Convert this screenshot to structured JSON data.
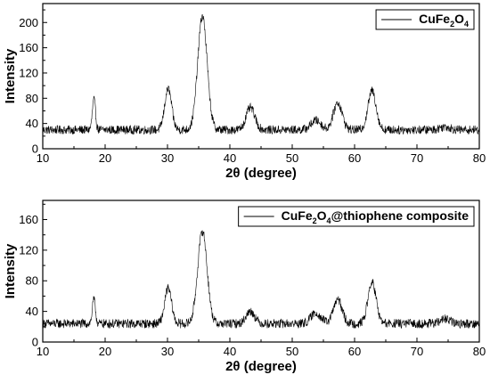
{
  "chart_data": [
    {
      "type": "line",
      "title": "",
      "xlabel": "2θ (degree)",
      "ylabel": "Intensity",
      "xlim": [
        10,
        80
      ],
      "ylim": [
        0,
        230
      ],
      "xticks": [
        "10",
        "20",
        "30",
        "40",
        "50",
        "60",
        "70",
        "80"
      ],
      "yticks": [
        "0",
        "40",
        "80",
        "120",
        "160",
        "200"
      ],
      "grid": false,
      "legend_position": "top-right",
      "series": [
        {
          "name": "CuFe2O4",
          "legend_parts": [
            "CuFe",
            "2",
            "O",
            "4"
          ],
          "baseline": 30,
          "noise": 7,
          "x": [
            10,
            18.2,
            30.1,
            35.6,
            43.3,
            53.8,
            57.3,
            62.8,
            74.5
          ],
          "y": [
            30,
            78,
            95,
            210,
            65,
            45,
            73,
            92,
            35
          ]
        }
      ]
    },
    {
      "type": "line",
      "title": "",
      "xlabel": "2θ (degree)",
      "ylabel": "Intensity",
      "xlim": [
        10,
        80
      ],
      "ylim": [
        0,
        185
      ],
      "xticks": [
        "10",
        "20",
        "30",
        "40",
        "50",
        "60",
        "70",
        "80"
      ],
      "yticks": [
        "0",
        "40",
        "80",
        "120",
        "160"
      ],
      "grid": false,
      "legend_position": "top-right",
      "series": [
        {
          "name": "CuFe2O4@thiophene composite",
          "legend_parts": [
            "CuFe",
            "2",
            "O",
            "4",
            "@thiophene composite"
          ],
          "baseline": 24,
          "noise": 6,
          "x": [
            10,
            18.2,
            30.1,
            35.6,
            43.3,
            53.8,
            57.3,
            62.8,
            74.5
          ],
          "y": [
            24,
            55,
            70,
            145,
            40,
            38,
            55,
            78,
            30
          ]
        }
      ]
    }
  ]
}
